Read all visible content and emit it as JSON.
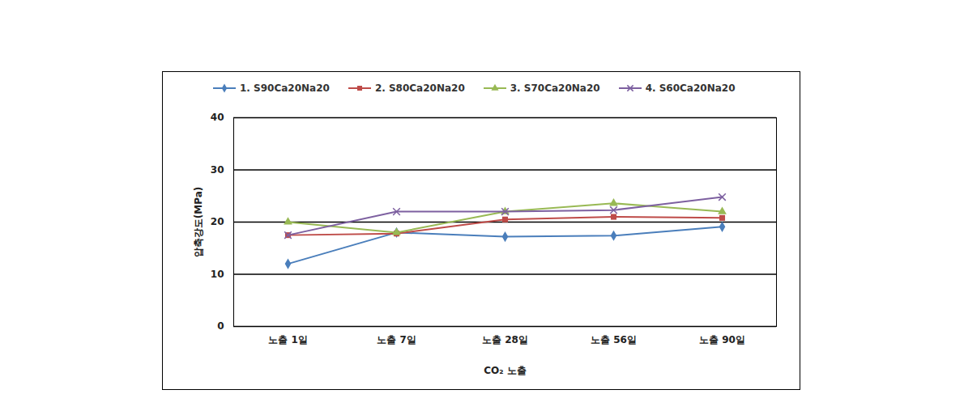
{
  "chart_data": {
    "type": "line",
    "categories": [
      "노출 1일",
      "노출 7일",
      "노출 28일",
      "노출 56일",
      "노출 90일"
    ],
    "x_label": "CO₂ 노출",
    "y_label": "압축강도(MPa)",
    "ylim": [
      0,
      40
    ],
    "yticks": [
      0,
      10,
      20,
      30,
      40
    ],
    "grid": true,
    "legend": "top",
    "series": [
      {
        "name": "1. S90Ca20Na20",
        "color": "#4a7ebb",
        "marker": "diamond",
        "values": [
          12,
          18,
          17.2,
          17.4,
          19.1
        ]
      },
      {
        "name": "2. S80Ca20Na20",
        "color": "#be4b48",
        "marker": "square",
        "values": [
          17.5,
          17.8,
          20.5,
          21,
          20.8
        ]
      },
      {
        "name": "3. S70Ca20Na20",
        "color": "#98b954",
        "marker": "triangle",
        "values": [
          20,
          18,
          22,
          23.6,
          22
        ]
      },
      {
        "name": "4. S60Ca20Na20",
        "color": "#7d60a0",
        "marker": "x",
        "values": [
          17.5,
          22,
          22,
          22.3,
          24.8
        ]
      }
    ]
  }
}
